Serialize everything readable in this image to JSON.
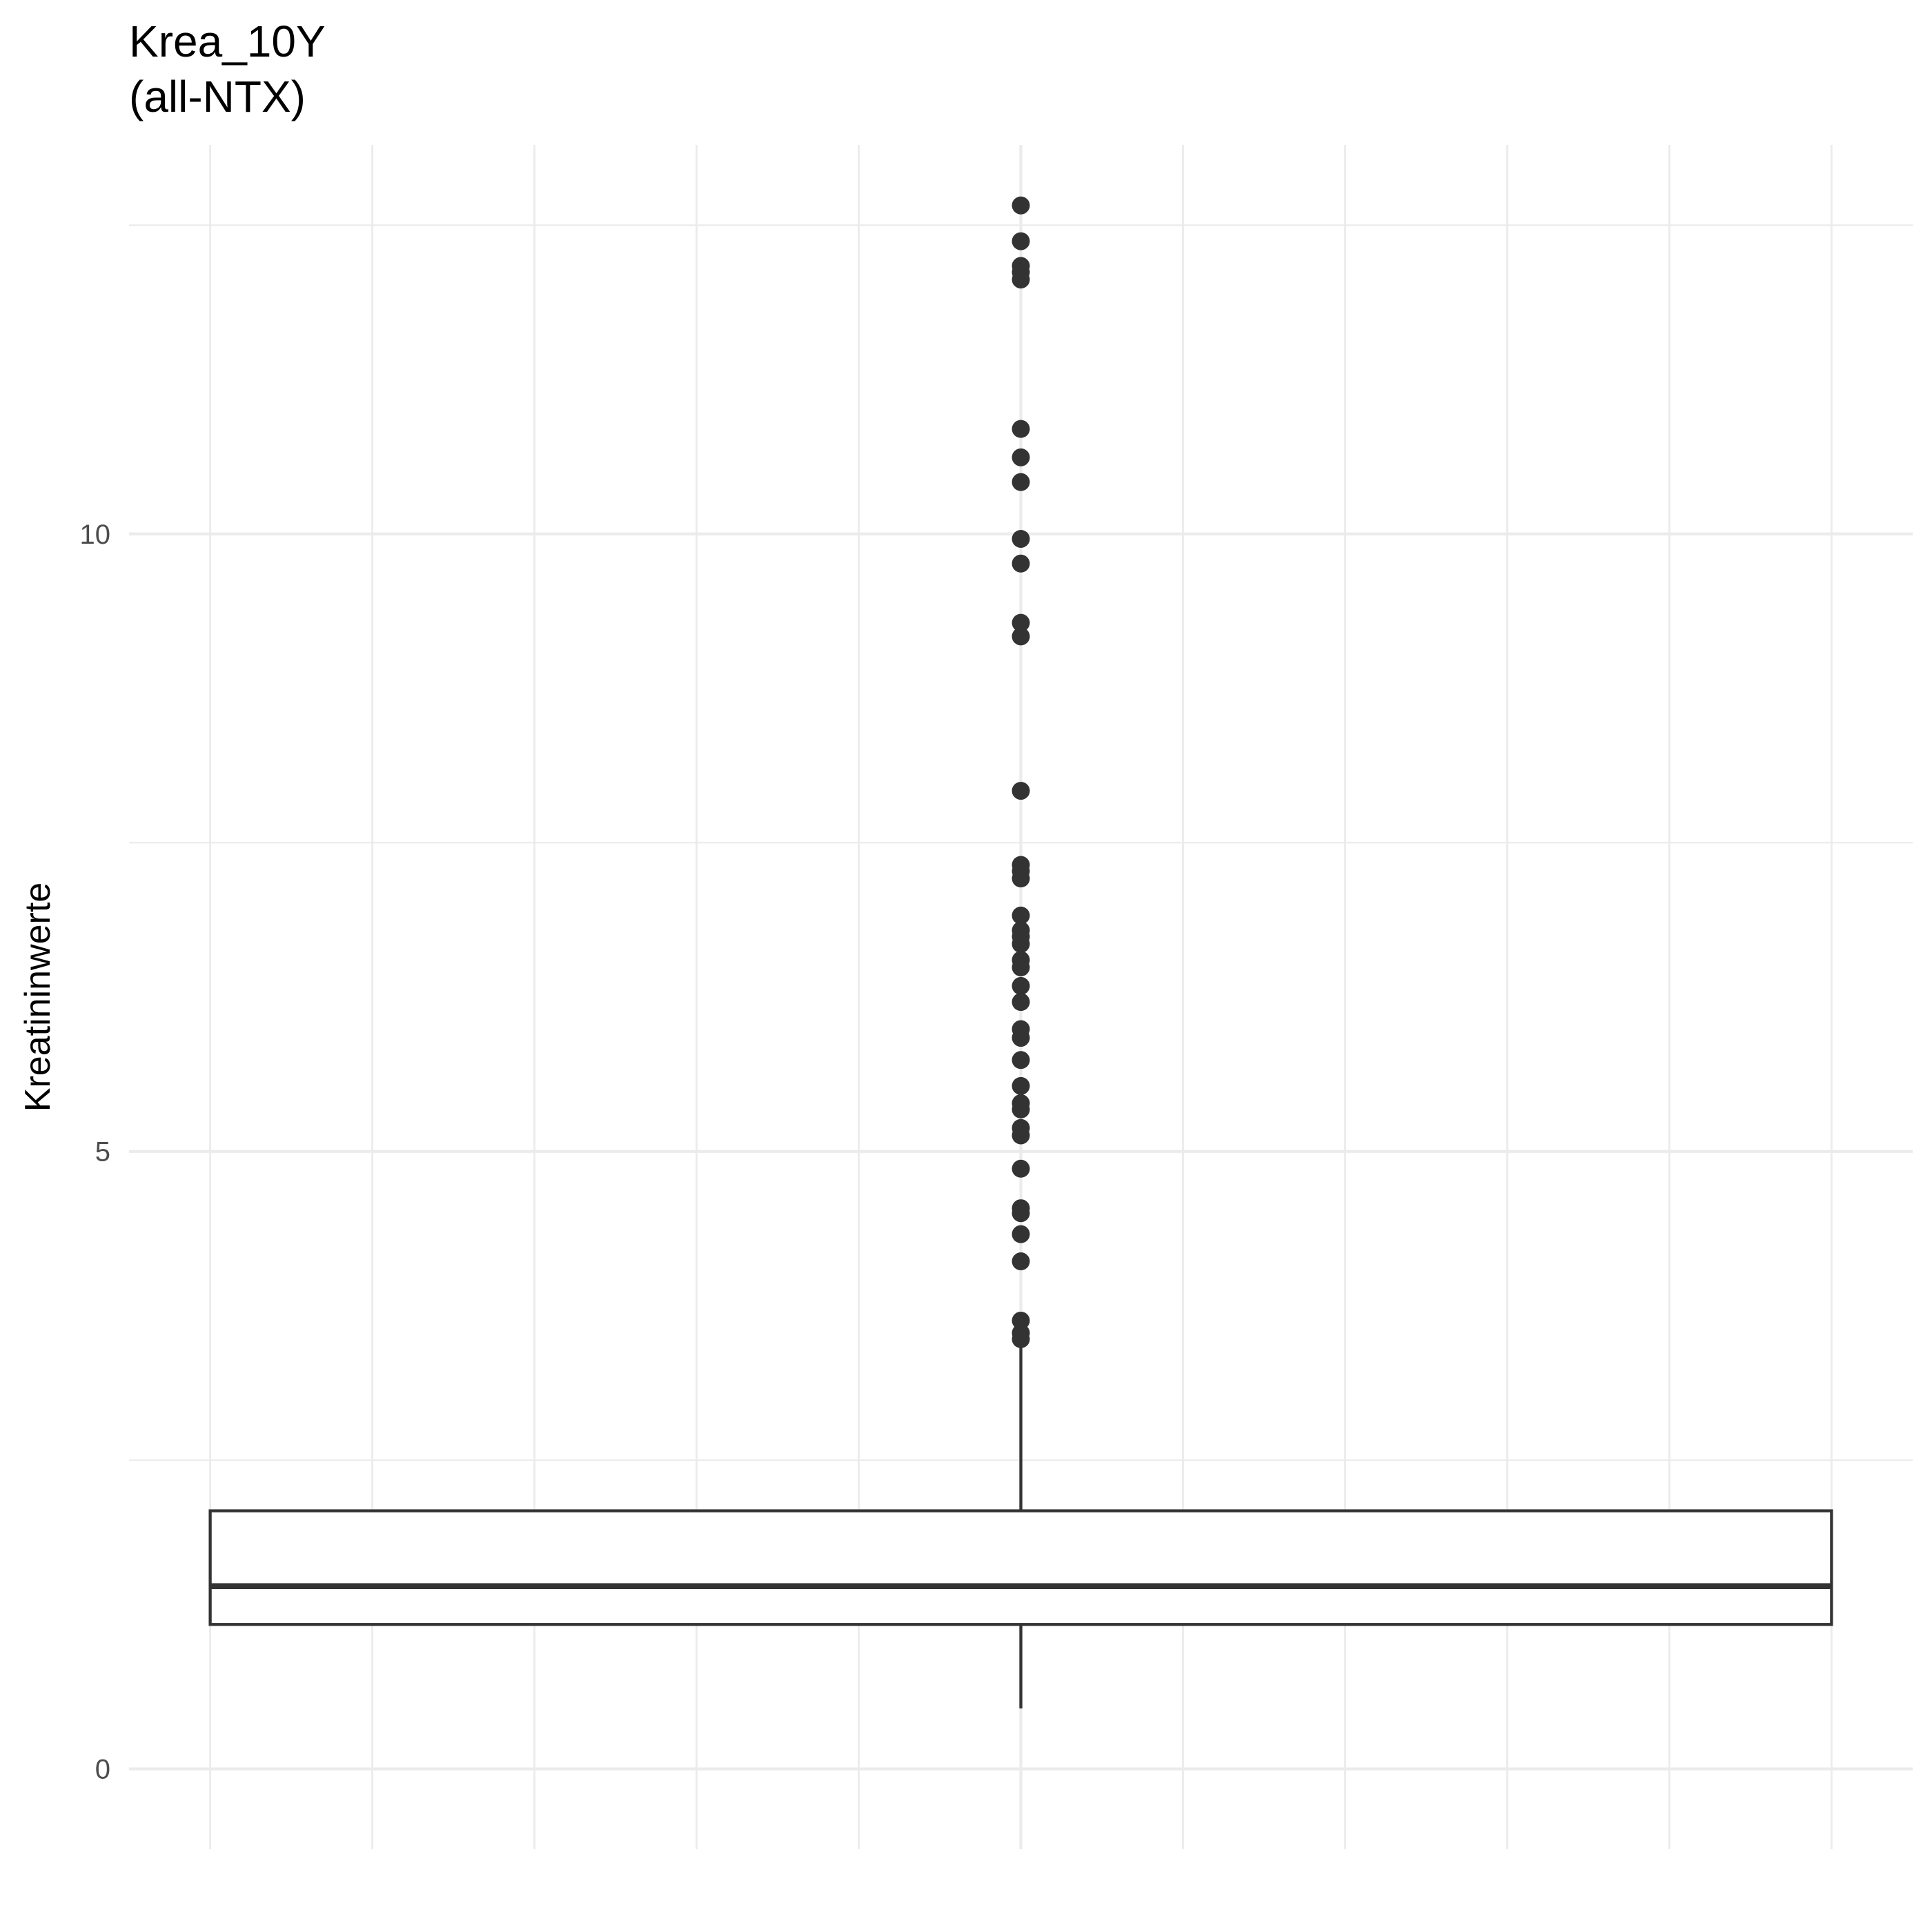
{
  "chart_data": {
    "type": "box",
    "title_lines": [
      "Krea_10Y",
      "(all-NTX)"
    ],
    "xlabel": "",
    "ylabel": "Kreatininwerte",
    "y_ticks": [
      0,
      5,
      10
    ],
    "y_tick_labels": [
      "0",
      "5",
      "10"
    ],
    "ylim": [
      -0.65,
      13.15
    ],
    "grid": true,
    "legend": "none",
    "box": {
      "lower_whisker": 0.49,
      "q1": 1.17,
      "median": 1.48,
      "q3": 2.09,
      "upper_whisker": 3.5
    },
    "outliers": [
      12.66,
      12.37,
      12.17,
      12.12,
      12.06,
      10.85,
      10.62,
      10.42,
      9.96,
      9.76,
      9.28,
      9.17,
      7.92,
      7.32,
      7.27,
      7.21,
      6.91,
      6.79,
      6.74,
      6.68,
      6.55,
      6.49,
      6.34,
      6.21,
      5.99,
      5.92,
      5.74,
      5.53,
      5.39,
      5.34,
      5.19,
      5.13,
      4.86,
      4.54,
      4.5,
      4.33,
      4.11,
      3.63,
      3.53,
      3.48
    ],
    "colors": {
      "box_line": "#333333",
      "point": "#333333",
      "grid": "#ebebeb",
      "tick_text": "#4d4d4d"
    }
  }
}
